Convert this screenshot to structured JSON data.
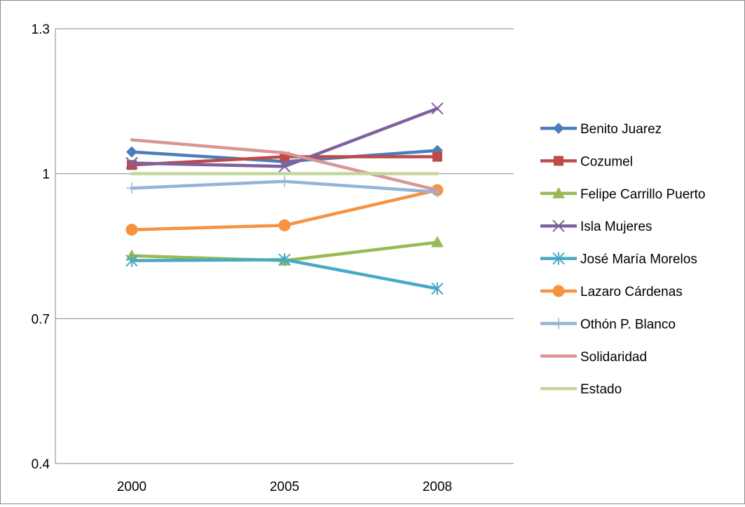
{
  "chart_data": {
    "type": "line",
    "title": "",
    "xlabel": "",
    "ylabel": "",
    "categories": [
      "2000",
      "2005",
      "2008"
    ],
    "ylim": [
      0.4,
      1.3
    ],
    "yticks": [
      "0.4",
      "0.7",
      "1",
      "1.3"
    ],
    "grid": "horizontal",
    "legend_position": "right",
    "series": [
      {
        "name": "Benito Juarez",
        "values": [
          1.045,
          1.025,
          1.048
        ],
        "color": "#4a7ebb",
        "marker": "diamond"
      },
      {
        "name": "Cozumel",
        "values": [
          1.018,
          1.035,
          1.035
        ],
        "color": "#be4b48",
        "marker": "square"
      },
      {
        "name": "Felipe Carrillo Puerto",
        "values": [
          0.83,
          0.82,
          0.858
        ],
        "color": "#98b954",
        "marker": "triangle"
      },
      {
        "name": "Isla Mujeres",
        "values": [
          1.022,
          1.015,
          1.135
        ],
        "color": "#7d60a0",
        "marker": "x"
      },
      {
        "name": "José María Morelos",
        "values": [
          0.82,
          0.822,
          0.762
        ],
        "color": "#46aac5",
        "marker": "star"
      },
      {
        "name": "Lazaro Cárdenas",
        "values": [
          0.884,
          0.893,
          0.966
        ],
        "color": "#f69240",
        "marker": "circle"
      },
      {
        "name": "Othón P. Blanco",
        "values": [
          0.97,
          0.984,
          0.962
        ],
        "color": "#95b3d7",
        "marker": "plus"
      },
      {
        "name": "Solidaridad",
        "values": [
          1.07,
          1.043,
          0.966
        ],
        "color": "#d99694",
        "marker": "none"
      },
      {
        "name": "Estado",
        "values": [
          1.0,
          1.0,
          1.0
        ],
        "color": "#c3d69b",
        "marker": "none"
      }
    ]
  }
}
